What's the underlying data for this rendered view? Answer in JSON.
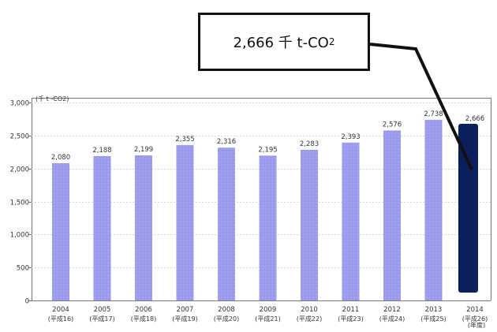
{
  "chart_data": {
    "type": "bar",
    "unit_label": "(千 t -CO2)",
    "x_unit_label": "(年度)",
    "categories": [
      "2004",
      "2005",
      "2006",
      "2007",
      "2008",
      "2009",
      "2010",
      "2011",
      "2012",
      "2013",
      "2014"
    ],
    "sub_categories": [
      "(平成16)",
      "(平成17)",
      "(平成18)",
      "(平成19)",
      "(平成20)",
      "(平成21)",
      "(平成22)",
      "(平成23)",
      "(平成24)",
      "(平成25)",
      "(平成26)"
    ],
    "values": [
      2080,
      2188,
      2199,
      2355,
      2316,
      2195,
      2283,
      2393,
      2576,
      2738,
      2666
    ],
    "value_labels": [
      "2,080",
      "2,188",
      "2,199",
      "2,355",
      "2,316",
      "2,195",
      "2,283",
      "2,393",
      "2,576",
      "2,738",
      "2,666"
    ],
    "ylim": [
      0,
      3000
    ],
    "yticks": [
      0,
      500,
      1000,
      1500,
      2000,
      2500,
      3000
    ],
    "ytick_labels": [
      "0",
      "500",
      "1,000",
      "1,500",
      "2,000",
      "2,500",
      "3,000"
    ],
    "grid": true,
    "highlight_index": 10,
    "colors": {
      "bar": "#9999ee",
      "highlight": "#0a1f5c",
      "grid": "#d9d9d9",
      "axis": "#777777"
    }
  },
  "callout": {
    "value": "2,666 千 t-CO",
    "subscript": "2"
  }
}
